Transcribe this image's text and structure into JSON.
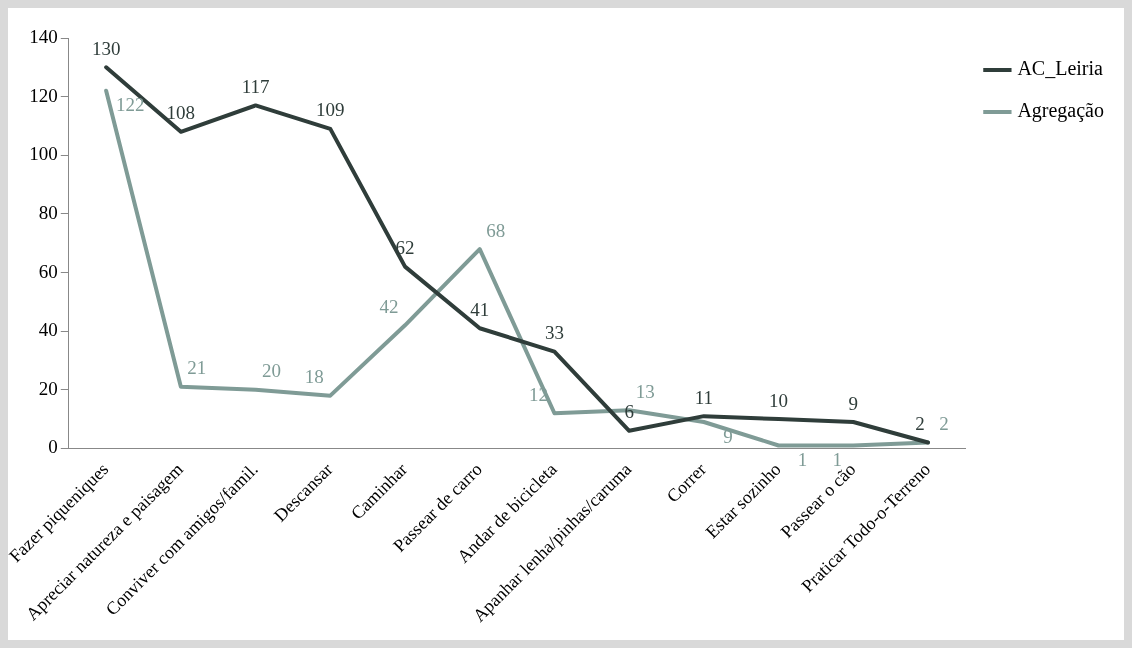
{
  "chart_data": {
    "type": "line",
    "categories": [
      "Fazer piqueniques",
      "Apreciar natureza e paisagem",
      "Conviver com amigos/famil.",
      "Descansar",
      "Caminhar",
      "Passear de carro",
      "Andar de bicicleta",
      "Apanhar lenha/pinhas/caruma",
      "Correr",
      "Estar sozinho",
      "Passear o cão",
      "Praticar Todo-o-Terreno"
    ],
    "series": [
      {
        "name": "AC_Leiria",
        "color": "#2f3d3a",
        "values": [
          130,
          108,
          117,
          109,
          62,
          41,
          33,
          6,
          11,
          10,
          9,
          2
        ]
      },
      {
        "name": "Agregação",
        "color": "#7f9b96",
        "values": [
          122,
          21,
          20,
          18,
          42,
          68,
          12,
          13,
          9,
          1,
          1,
          2
        ]
      }
    ],
    "ylim": [
      0,
      140
    ],
    "yticks": [
      0,
      20,
      40,
      60,
      80,
      100,
      120,
      140
    ],
    "grid": false,
    "legend": "top right",
    "marker": "none",
    "data_labels": true
  }
}
